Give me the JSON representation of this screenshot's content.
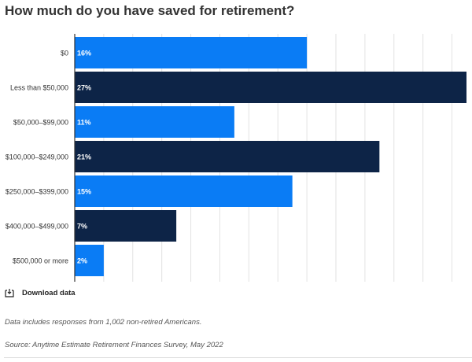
{
  "chart_data": {
    "type": "bar",
    "orientation": "horizontal",
    "title": "How much do you have saved for retirement?",
    "categories": [
      "$0",
      "Less than $50,000",
      "$50,000–$99,000",
      "$100,000–$249,000",
      "$250,000–$399,000",
      "$400,000–$499,000",
      "$500,000 or more"
    ],
    "values": [
      16,
      27,
      11,
      21,
      15,
      7,
      2
    ],
    "data_labels": [
      "16%",
      "27%",
      "11%",
      "21%",
      "15%",
      "7%",
      "2%"
    ],
    "unit": "%",
    "xlim": [
      0,
      27
    ],
    "grid": true,
    "colors": [
      "#0a7cf5",
      "#0d2447",
      "#0a7cf5",
      "#0d2447",
      "#0a7cf5",
      "#0d2447",
      "#0a7cf5"
    ]
  },
  "download_label": "Download data",
  "icons": {
    "download": "download-icon"
  },
  "note": "Data includes responses from 1,002 non-retired Americans.",
  "source": "Source: Anytime Estimate Retirement Finances Survey, May 2022"
}
